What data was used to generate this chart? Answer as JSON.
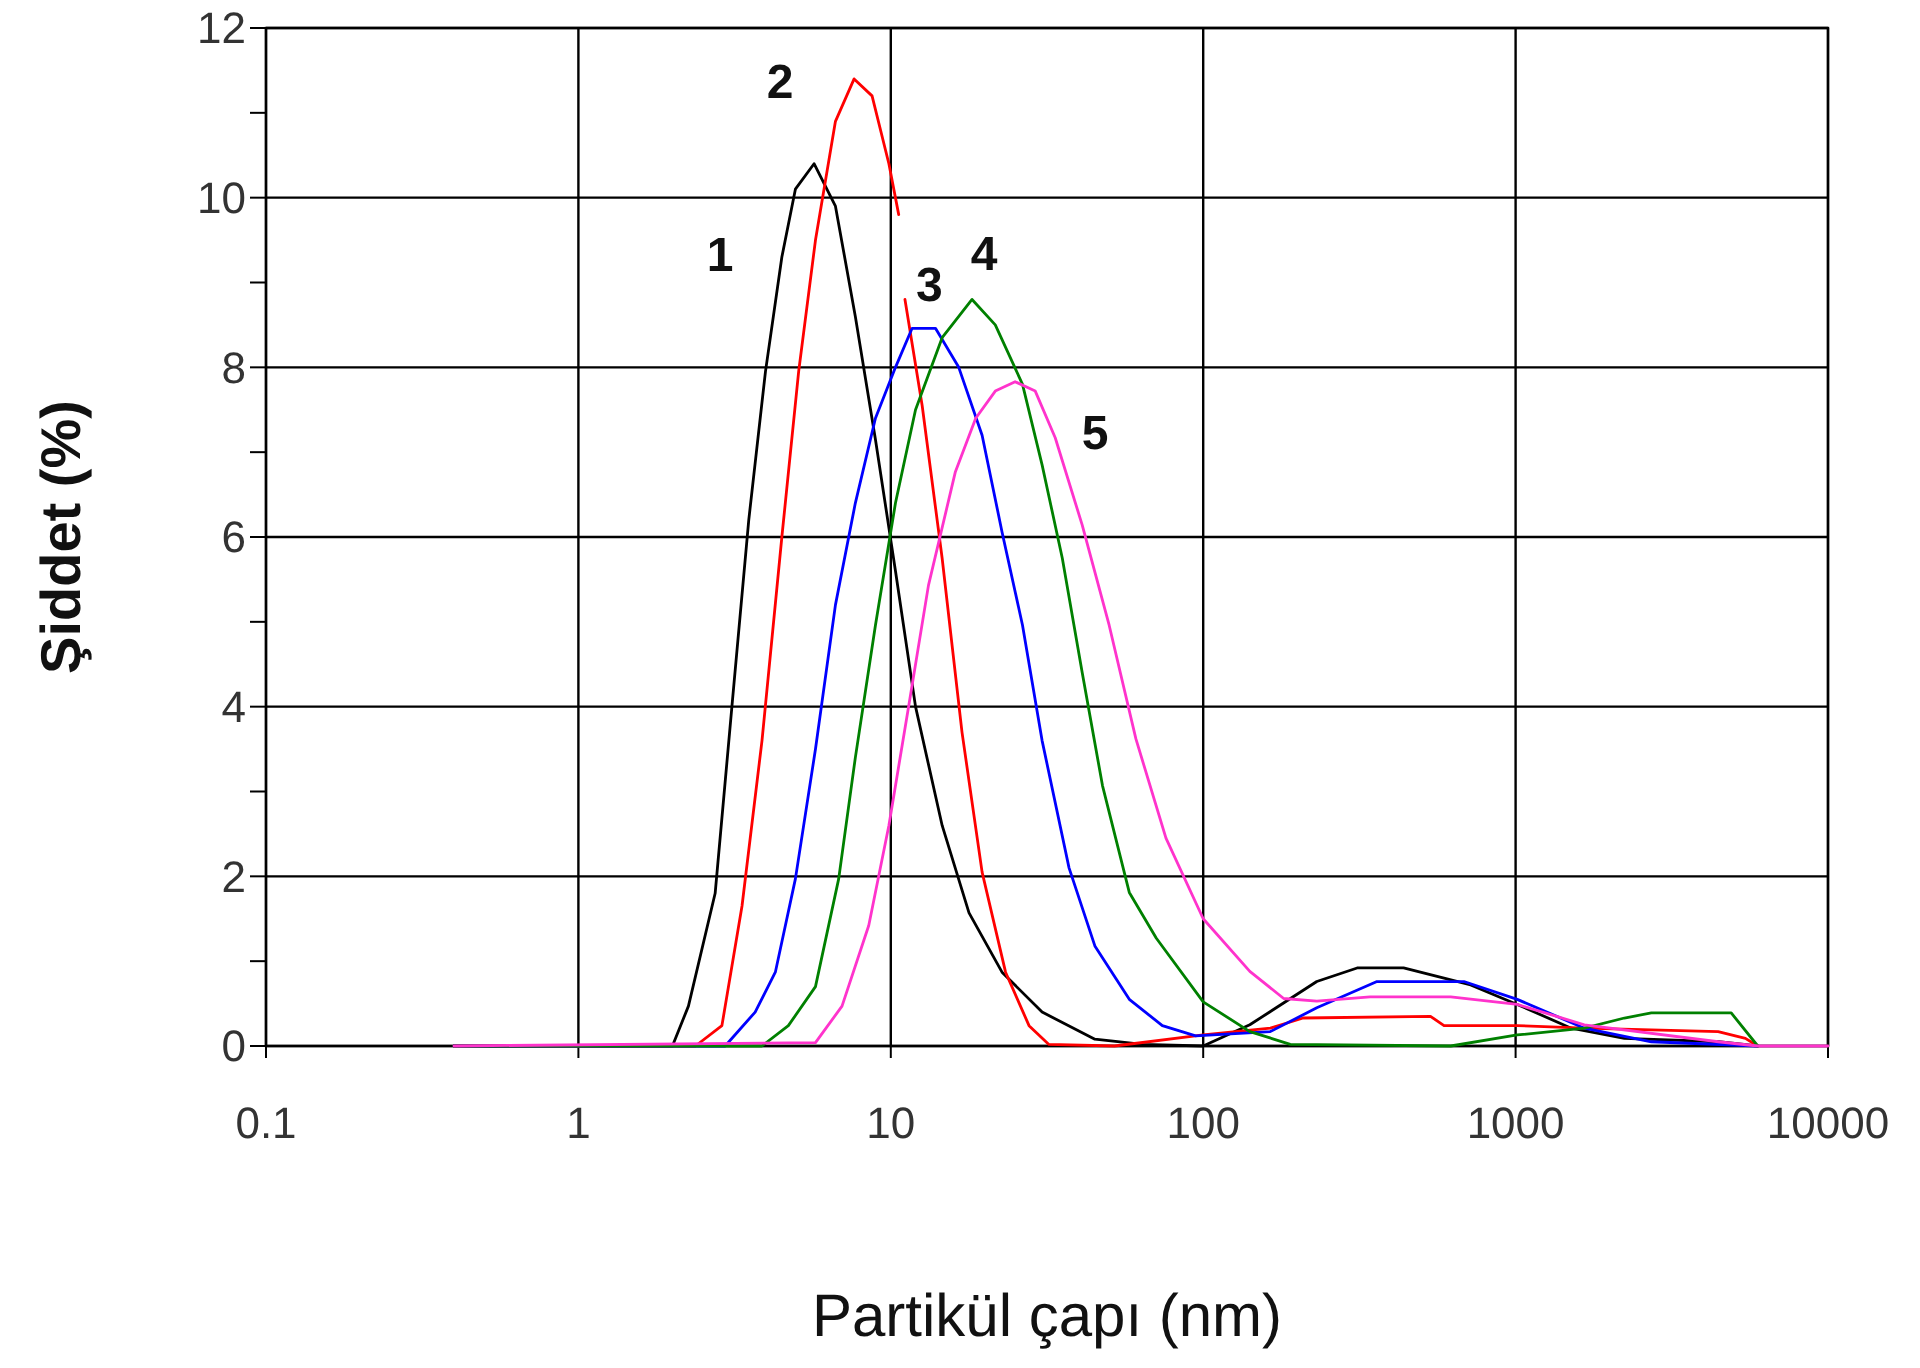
{
  "chart_data": {
    "type": "line",
    "xlabel": "Partikül çapı (nm)",
    "ylabel": "Şiddet (%)",
    "log": "x",
    "xlim": [
      0.1,
      10000
    ],
    "xticks": [
      0.1,
      1,
      10,
      100,
      1000,
      10000
    ],
    "ylim": [
      0,
      12
    ],
    "yticks": [
      0,
      {
        "value": 1,
        "label": null
      },
      2,
      {
        "value": 3,
        "label": null
      },
      4,
      {
        "value": 5,
        "label": null
      },
      6,
      {
        "value": 7,
        "label": null
      },
      8,
      {
        "value": 9,
        "label": null
      },
      10,
      {
        "value": 11,
        "label": null
      },
      12
    ],
    "grid": true,
    "marker": "none",
    "line_style": "solid",
    "series": [
      {
        "name": "1",
        "color": "#000000",
        "x": [
          0.4,
          2.0,
          2.25,
          2.74,
          3.1,
          3.51,
          3.97,
          4.48,
          4.95,
          5.68,
          6.65,
          7.7,
          8.93,
          10.35,
          12.0,
          14.6,
          17.8,
          22.7,
          30.5,
          45,
          64,
          100,
          141,
          231,
          311,
          438,
          718,
          1012,
          1507,
          2230,
          4470,
          5960
        ],
        "values": [
          0,
          0,
          0.47,
          1.8,
          4.0,
          6.2,
          7.95,
          9.3,
          10.1,
          10.4,
          9.9,
          8.6,
          7.15,
          5.6,
          4.0,
          2.6,
          1.57,
          0.87,
          0.4,
          0.08,
          0.02,
          0,
          0.25,
          0.76,
          0.92,
          0.92,
          0.72,
          0.49,
          0.21,
          0.09,
          0.05,
          0
        ]
      },
      {
        "name": "2",
        "color": "#ff0000",
        "x": [
          0.4,
          2.37,
          2.88,
          3.34,
          3.87,
          4.48,
          5.07,
          5.74,
          6.65,
          7.63,
          8.71,
          9.86,
          10.6,
          10.85,
          11.1,
          12.6,
          14.6,
          16.9,
          19.6,
          23.3,
          27.7,
          32,
          52,
          100,
          164,
          209,
          534,
          590,
          1012,
          1660,
          4450,
          5440,
          5960
        ],
        "values": [
          0,
          0,
          0.24,
          1.65,
          3.6,
          6.0,
          7.95,
          9.5,
          10.9,
          11.4,
          11.2,
          10.4,
          9.8,
          null,
          8.8,
          7.55,
          5.75,
          3.7,
          2.05,
          0.87,
          0.24,
          0.02,
          0,
          0.13,
          0.21,
          0.33,
          0.35,
          0.24,
          0.24,
          0.21,
          0.17,
          0.09,
          0
        ]
      },
      {
        "name": "3",
        "color": "#0000ff",
        "x": [
          0.4,
          2.95,
          3.68,
          4.27,
          4.95,
          5.74,
          6.65,
          7.7,
          8.93,
          10.35,
          11.7,
          13.9,
          16.5,
          19.6,
          22.7,
          26.4,
          30.5,
          37.2,
          45,
          58,
          74,
          94.6,
          164,
          231,
          360,
          683,
          1012,
          1660,
          2720,
          5960
        ],
        "values": [
          0,
          0,
          0.4,
          0.87,
          1.97,
          3.5,
          5.2,
          6.4,
          7.4,
          8.0,
          8.46,
          8.46,
          8.0,
          7.2,
          6.06,
          4.96,
          3.6,
          2.1,
          1.18,
          0.55,
          0.24,
          0.12,
          0.17,
          0.45,
          0.76,
          0.76,
          0.55,
          0.21,
          0.05,
          0
        ]
      },
      {
        "name": "4",
        "color": "#008000",
        "x": [
          0.4,
          3.87,
          4.7,
          5.74,
          6.81,
          7.7,
          8.93,
          10.35,
          12.0,
          14.6,
          18.2,
          21.6,
          26.4,
          30.5,
          35.4,
          41,
          47.6,
          58,
          70.8,
          100,
          141,
          190,
          620,
          1012,
          1660,
          2230,
          2720,
          4900,
          5960
        ],
        "values": [
          0,
          0,
          0.24,
          0.7,
          1.97,
          3.4,
          4.96,
          6.4,
          7.5,
          8.35,
          8.8,
          8.5,
          7.8,
          6.85,
          5.75,
          4.4,
          3.07,
          1.81,
          1.27,
          0.52,
          0.17,
          0.02,
          0,
          0.13,
          0.21,
          0.33,
          0.39,
          0.39,
          0
        ]
      },
      {
        "name": "5",
        "color": "#ff33cc",
        "x": [
          0.4,
          5.74,
          6.98,
          8.5,
          9.86,
          11.4,
          13.2,
          16.1,
          18.7,
          21.6,
          25,
          29,
          33.6,
          41,
          50,
          60.9,
          76,
          100,
          141,
          181,
          231,
          342,
          620,
          1012,
          1660,
          4450,
          5960,
          10000
        ],
        "values": [
          0,
          0.04,
          0.47,
          1.42,
          2.6,
          4.0,
          5.43,
          6.77,
          7.4,
          7.72,
          7.83,
          7.72,
          7.17,
          6.14,
          4.96,
          3.62,
          2.45,
          1.5,
          0.88,
          0.56,
          0.53,
          0.58,
          0.58,
          0.49,
          0.25,
          0.05,
          0,
          0
        ]
      }
    ]
  }
}
